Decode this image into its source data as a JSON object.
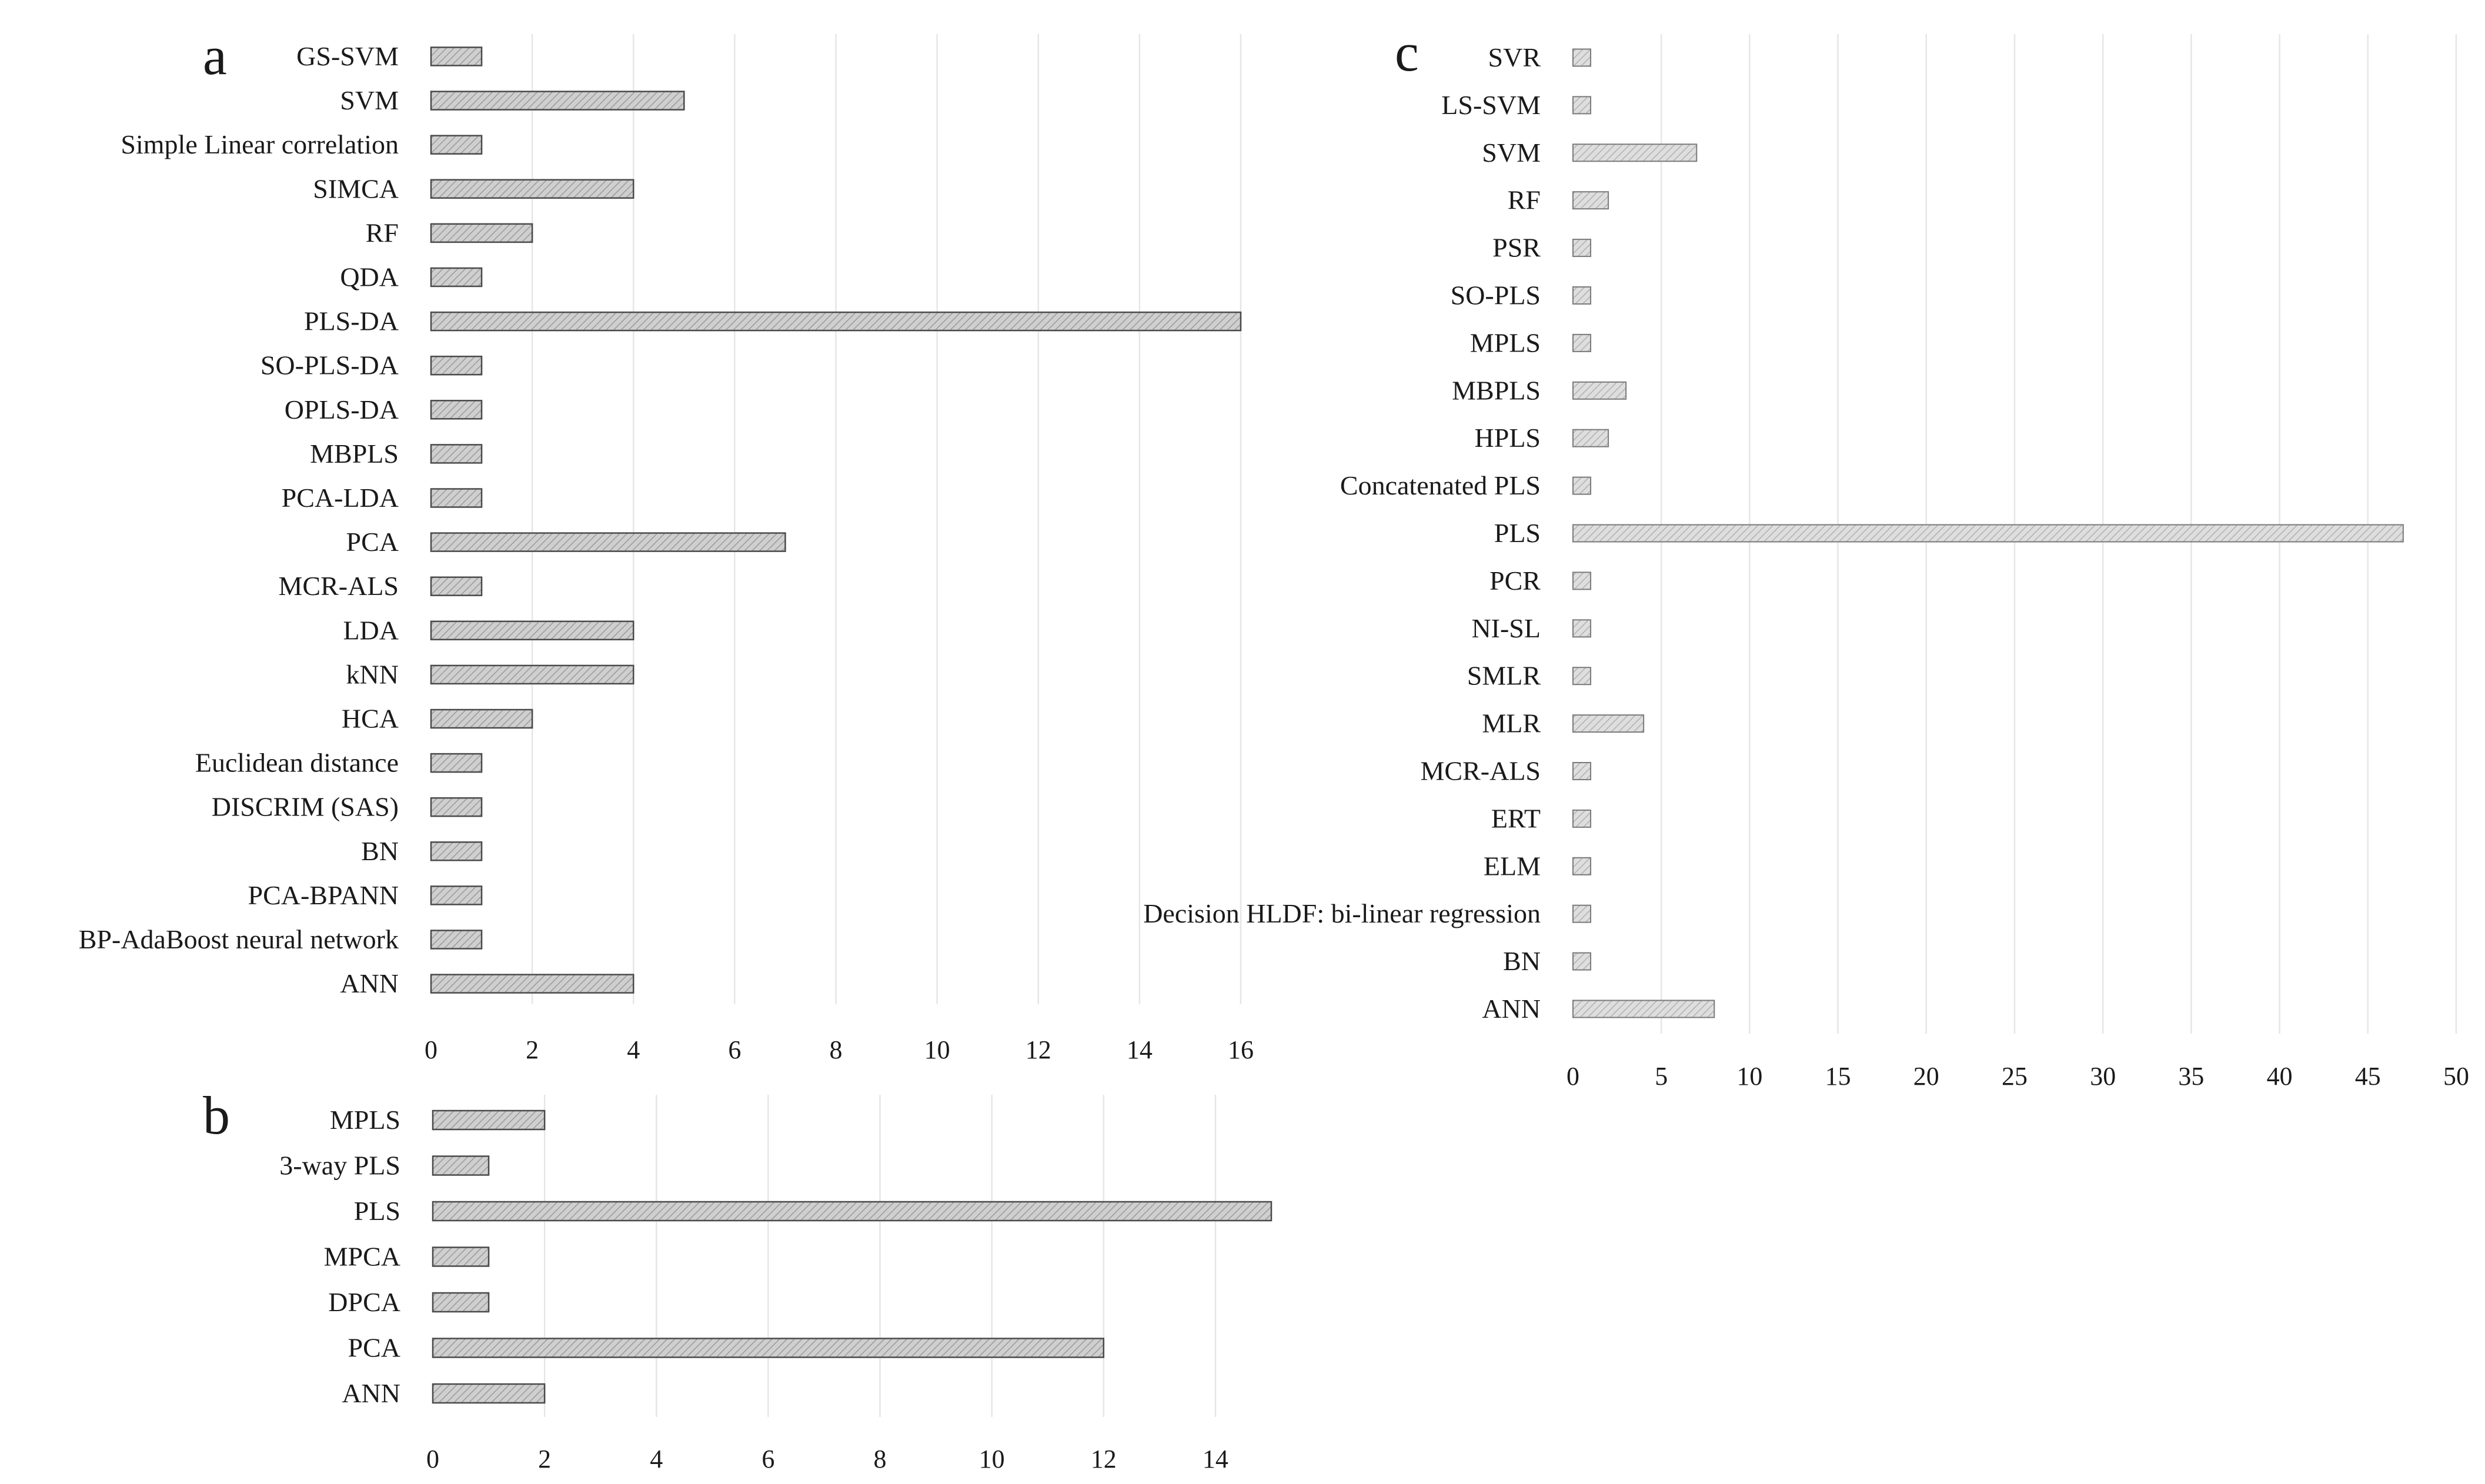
{
  "chart_data": [
    {
      "type": "bar",
      "orientation": "horizontal",
      "panel_label": "a",
      "categories": [
        "GS-SVM",
        "SVM",
        "Simple Linear correlation",
        "SIMCA",
        "RF",
        "QDA",
        "PLS-DA",
        "SO-PLS-DA",
        "OPLS-DA",
        "MBPLS",
        "PCA-LDA",
        "PCA",
        "MCR-ALS",
        "LDA",
        "kNN",
        "HCA",
        "Euclidean distance",
        "DISCRIM (SAS)",
        "BN",
        "PCA-BPANN",
        "BP-AdaBoost neural network",
        "ANN"
      ],
      "values": [
        1,
        5,
        1,
        4,
        2,
        1,
        16,
        1,
        1,
        1,
        1,
        7,
        1,
        4,
        4,
        2,
        1,
        1,
        1,
        1,
        1,
        4
      ],
      "xlim": [
        0,
        16
      ],
      "xticks": [
        0,
        2,
        4,
        6,
        8,
        10,
        12,
        14,
        16
      ],
      "xtick_labels": [
        "0",
        "2",
        "4",
        "6",
        "8",
        "10",
        "12",
        "14",
        "16"
      ],
      "grid": "vertical",
      "title": "",
      "xlabel": "",
      "ylabel": ""
    },
    {
      "type": "bar",
      "orientation": "horizontal",
      "panel_label": "b",
      "categories": [
        "MPLS",
        "3-way PLS",
        "PLS",
        "MPCA",
        "DPCA",
        "PCA",
        "ANN"
      ],
      "values": [
        2,
        1,
        15,
        1,
        1,
        12,
        2
      ],
      "xlim": [
        0,
        15
      ],
      "xticks": [
        0,
        2,
        4,
        6,
        8,
        10,
        12,
        14
      ],
      "xtick_labels": [
        "0",
        "2",
        "4",
        "6",
        "8",
        "10",
        "12",
        "14"
      ],
      "grid": "vertical",
      "title": "",
      "xlabel": "",
      "ylabel": ""
    },
    {
      "type": "bar",
      "orientation": "horizontal",
      "panel_label": "c",
      "categories": [
        "SVR",
        "LS-SVM",
        "SVM",
        "RF",
        "PSR",
        "SO-PLS",
        "MPLS",
        "MBPLS",
        "HPLS",
        "Concatenated PLS",
        "PLS",
        "PCR",
        "NI-SL",
        "SMLR",
        "MLR",
        "MCR-ALS",
        "ERT",
        "ELM",
        "Decision HLDF: bi-linear regression",
        "BN",
        "ANN"
      ],
      "values": [
        1,
        1,
        7,
        2,
        1,
        1,
        1,
        3,
        2,
        1,
        47,
        1,
        1,
        1,
        4,
        1,
        1,
        1,
        1,
        1,
        8
      ],
      "xlim": [
        0,
        50
      ],
      "xticks": [
        0,
        5,
        10,
        15,
        20,
        25,
        30,
        35,
        40,
        45,
        50
      ],
      "xtick_labels": [
        "0",
        "5",
        "10",
        "15",
        "20",
        "25",
        "30",
        "35",
        "40",
        "45",
        "50"
      ],
      "grid": "vertical",
      "title": "",
      "xlabel": "",
      "ylabel": ""
    }
  ]
}
